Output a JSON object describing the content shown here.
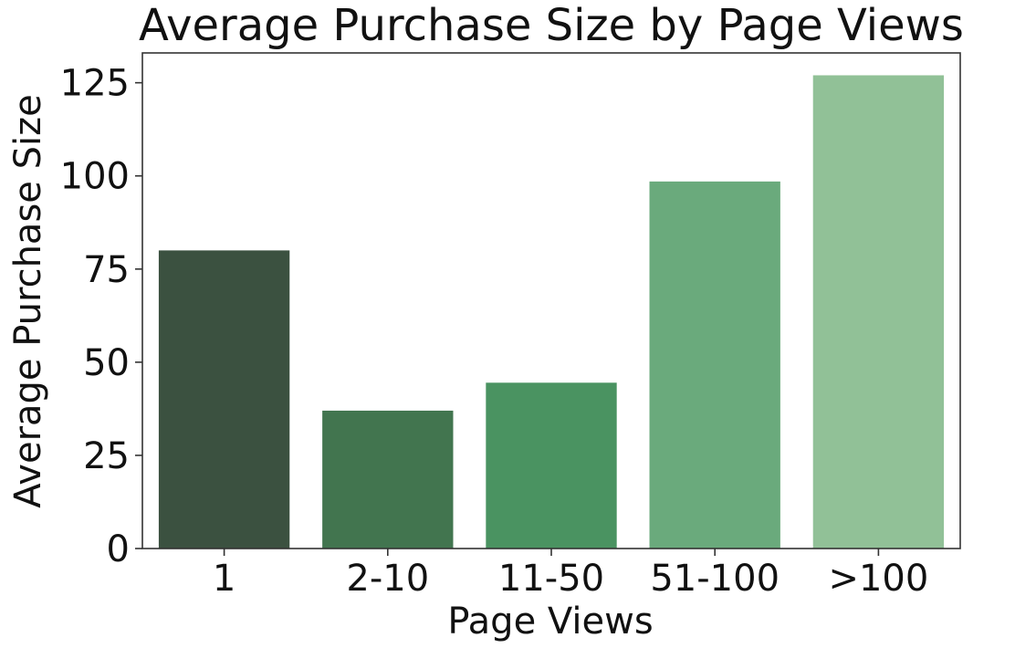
{
  "chart_data": {
    "type": "bar",
    "title": "Average Purchase Size by Page Views",
    "xlabel": "Page Views",
    "ylabel": "Average Purchase Size",
    "categories": [
      "1",
      "2-10",
      "11-50",
      "51-100",
      ">100"
    ],
    "values": [
      80,
      37,
      44.5,
      98.5,
      127
    ],
    "ylim": [
      0,
      133
    ],
    "yticks": [
      0,
      25,
      50,
      75,
      100,
      125
    ],
    "grid": false,
    "colors": [
      "#3b5140",
      "#42754f",
      "#4a9361",
      "#6aaa7c",
      "#91c197"
    ]
  }
}
